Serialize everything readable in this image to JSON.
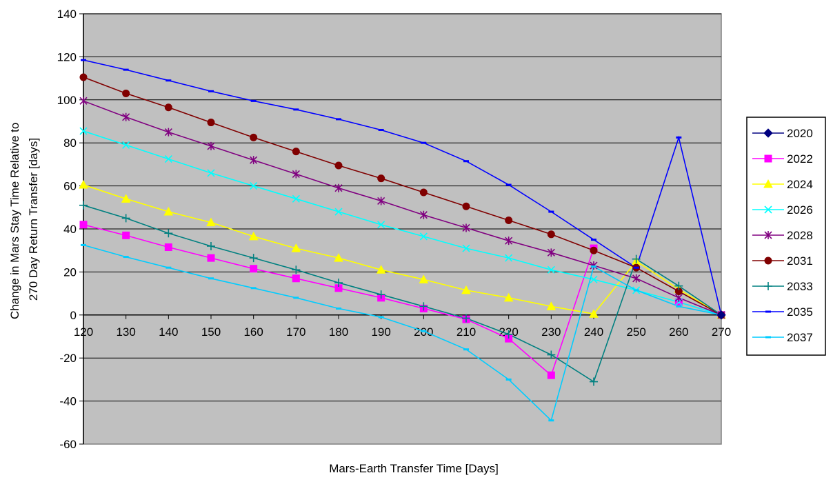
{
  "chart_data": {
    "type": "line",
    "title": "",
    "xlabel": "Mars-Earth Transfer Time [Days]",
    "ylabel_lines": [
      "Change in Mars Stay Time Relative to",
      "270 Day Return Transfer [days]"
    ],
    "x": [
      120,
      130,
      140,
      150,
      160,
      170,
      180,
      190,
      200,
      210,
      220,
      230,
      240,
      250,
      260,
      270
    ],
    "x_ticks": [
      "120",
      "130",
      "140",
      "150",
      "160",
      "170",
      "180",
      "190",
      "200",
      "210",
      "220",
      "230",
      "240",
      "250",
      "260",
      "270"
    ],
    "ylim": [
      -60,
      140
    ],
    "y_ticks": [
      "-60",
      "-40",
      "-20",
      "0",
      "20",
      "40",
      "60",
      "80",
      "100",
      "120",
      "140"
    ],
    "y_tick_values": [
      -60,
      -40,
      -20,
      0,
      20,
      40,
      60,
      80,
      100,
      120,
      140
    ],
    "grid": true,
    "legend_position": "right",
    "plot_background": "#c0c0c0",
    "series": [
      {
        "name": "2020",
        "color": "#000080",
        "marker": "diamond",
        "values": [
          null,
          null,
          null,
          null,
          null,
          null,
          null,
          null,
          null,
          null,
          null,
          null,
          null,
          null,
          null,
          0
        ]
      },
      {
        "name": "2022",
        "color": "#ff00ff",
        "marker": "square",
        "values": [
          42,
          37,
          31.5,
          26.5,
          21.5,
          17,
          12.5,
          8,
          3,
          -2,
          -11,
          -28,
          31,
          null,
          6,
          0
        ]
      },
      {
        "name": "2024",
        "color": "#ffff00",
        "marker": "triangle",
        "values": [
          60.5,
          54,
          48,
          43,
          36.5,
          31,
          26.5,
          21,
          16.5,
          11.5,
          8,
          4,
          0.5,
          25,
          12,
          0
        ]
      },
      {
        "name": "2026",
        "color": "#00ffff",
        "marker": "x",
        "values": [
          85.5,
          79,
          72.5,
          66,
          60,
          54,
          48,
          42,
          36.5,
          31,
          26.5,
          21,
          16.5,
          11.5,
          6,
          0
        ]
      },
      {
        "name": "2028",
        "color": "#800080",
        "marker": "star",
        "values": [
          99.5,
          92,
          85,
          78.5,
          72,
          65.5,
          59,
          53,
          46.5,
          40.5,
          34.5,
          29,
          23,
          17,
          8,
          0
        ]
      },
      {
        "name": "2031",
        "color": "#800000",
        "marker": "circle",
        "values": [
          110.5,
          103,
          96.5,
          89.5,
          82.5,
          76,
          69.5,
          63.5,
          57,
          50.5,
          44,
          37.5,
          30,
          22,
          11,
          0
        ]
      },
      {
        "name": "2033",
        "color": "#008080",
        "marker": "plus",
        "values": [
          51,
          45,
          38,
          32,
          26.5,
          21,
          15,
          9.5,
          4,
          -1.5,
          -9,
          -18.5,
          -31,
          26,
          13.5,
          0
        ]
      },
      {
        "name": "2035",
        "color": "#0000ff",
        "marker": "dash",
        "values": [
          118.5,
          114,
          109,
          104,
          99.5,
          95.5,
          91,
          86,
          80,
          71.5,
          60.5,
          48,
          35,
          22,
          82.5,
          0
        ]
      },
      {
        "name": "2037",
        "color": "#00ccff",
        "marker": "dash",
        "values": [
          32.5,
          27,
          22,
          17,
          12.5,
          8,
          3,
          -1,
          -7.5,
          -16,
          -30,
          -49,
          22.5,
          11.5,
          4,
          0
        ]
      }
    ]
  }
}
